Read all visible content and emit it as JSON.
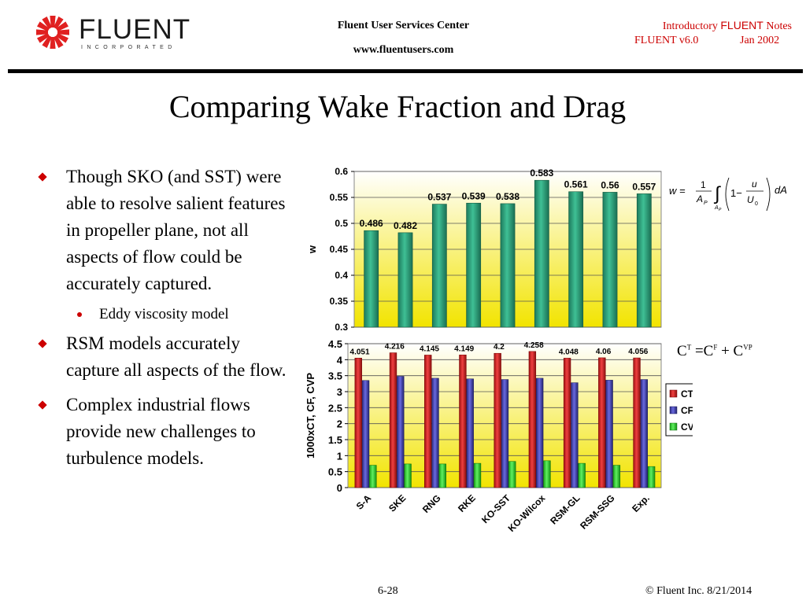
{
  "header": {
    "logo_name": "FLUENT",
    "logo_sub": "INCORPORATED",
    "center_line1": "Fluent User Services Center",
    "center_line2": "www.fluentusers.com",
    "right_pre": "Introductory ",
    "right_brand": "FLUENT",
    "right_post": " Notes",
    "version": "FLUENT v6.0",
    "date": "Jan 2002"
  },
  "slide": {
    "title": "Comparing Wake Fraction and Drag"
  },
  "bullets": [
    {
      "text": "Though SKO (and SST) were able to resolve salient features in propeller plane, not all aspects of flow could be accurately captured."
    },
    {
      "text": "Eddy viscosity model",
      "sub": true
    },
    {
      "text": "RSM models accurately capture all aspects of the flow."
    },
    {
      "text": "Complex industrial flows provide new challenges to turbulence models."
    }
  ],
  "equations": {
    "wake": "w = 1/A_P ∫ (1 − u/U0) dA",
    "drag_C": "C",
    "drag_eq": " =C",
    "drag_plus": " + C",
    "sup1": "T",
    "sup2": "F",
    "sup3": "VP"
  },
  "footer": {
    "page": "6-28",
    "copyright": "© Fluent Inc. 8/21/2014"
  },
  "colors": {
    "accent": "#cc0000",
    "bar_green": "#2e9e78",
    "ct": "#d62020",
    "cf": "#3a3ab0",
    "cvp": "#22cc22",
    "plot_bg_top": "#ffffff",
    "plot_bg_bottom": "#f2e400"
  },
  "chart_data": [
    {
      "type": "bar",
      "categories": [
        "S-A",
        "SKE",
        "RNG",
        "RKE",
        "KO-SST",
        "KO-Wilcox",
        "RSM-GL",
        "RSM-SSG",
        "Exp."
      ],
      "values": [
        0.486,
        0.482,
        0.537,
        0.539,
        0.538,
        0.583,
        0.561,
        0.56,
        0.557
      ],
      "data_labels": [
        "0.486",
        "0.482",
        "0.537",
        "0.539",
        "0.538",
        "0.583",
        "0.561",
        "0.56",
        "0.557"
      ],
      "ylabel": "w",
      "ylim": [
        0.3,
        0.6
      ],
      "yticks": [
        "0.3",
        "0.35",
        "0.4",
        "0.45",
        "0.5",
        "0.55",
        "0.6"
      ],
      "grid": true
    },
    {
      "type": "bar",
      "categories": [
        "S-A",
        "SKE",
        "RNG",
        "RKE",
        "KO-SST",
        "KO-Wilcox",
        "RSM-GL",
        "RSM-SSG",
        "Exp."
      ],
      "series": [
        {
          "name": "CT",
          "values": [
            4.051,
            4.216,
            4.145,
            4.149,
            4.2,
            4.258,
            4.048,
            4.06,
            4.056
          ]
        },
        {
          "name": "CF",
          "values": [
            3.35,
            3.48,
            3.42,
            3.4,
            3.38,
            3.42,
            3.28,
            3.36,
            3.38
          ]
        },
        {
          "name": "CVP",
          "values": [
            0.7,
            0.74,
            0.74,
            0.76,
            0.82,
            0.84,
            0.76,
            0.7,
            0.66
          ]
        }
      ],
      "data_labels": [
        "4.051",
        "4.216",
        "4.145",
        "4.149",
        "4.2",
        "4.258",
        "4.048",
        "4.06",
        "4.056"
      ],
      "ylabel": "1000xCT, CF, CVP",
      "ylim": [
        0,
        4.5
      ],
      "yticks": [
        "0",
        "0.5",
        "1",
        "1.5",
        "2",
        "2.5",
        "3",
        "3.5",
        "4",
        "4.5"
      ],
      "legend": "right",
      "grid": true
    }
  ]
}
